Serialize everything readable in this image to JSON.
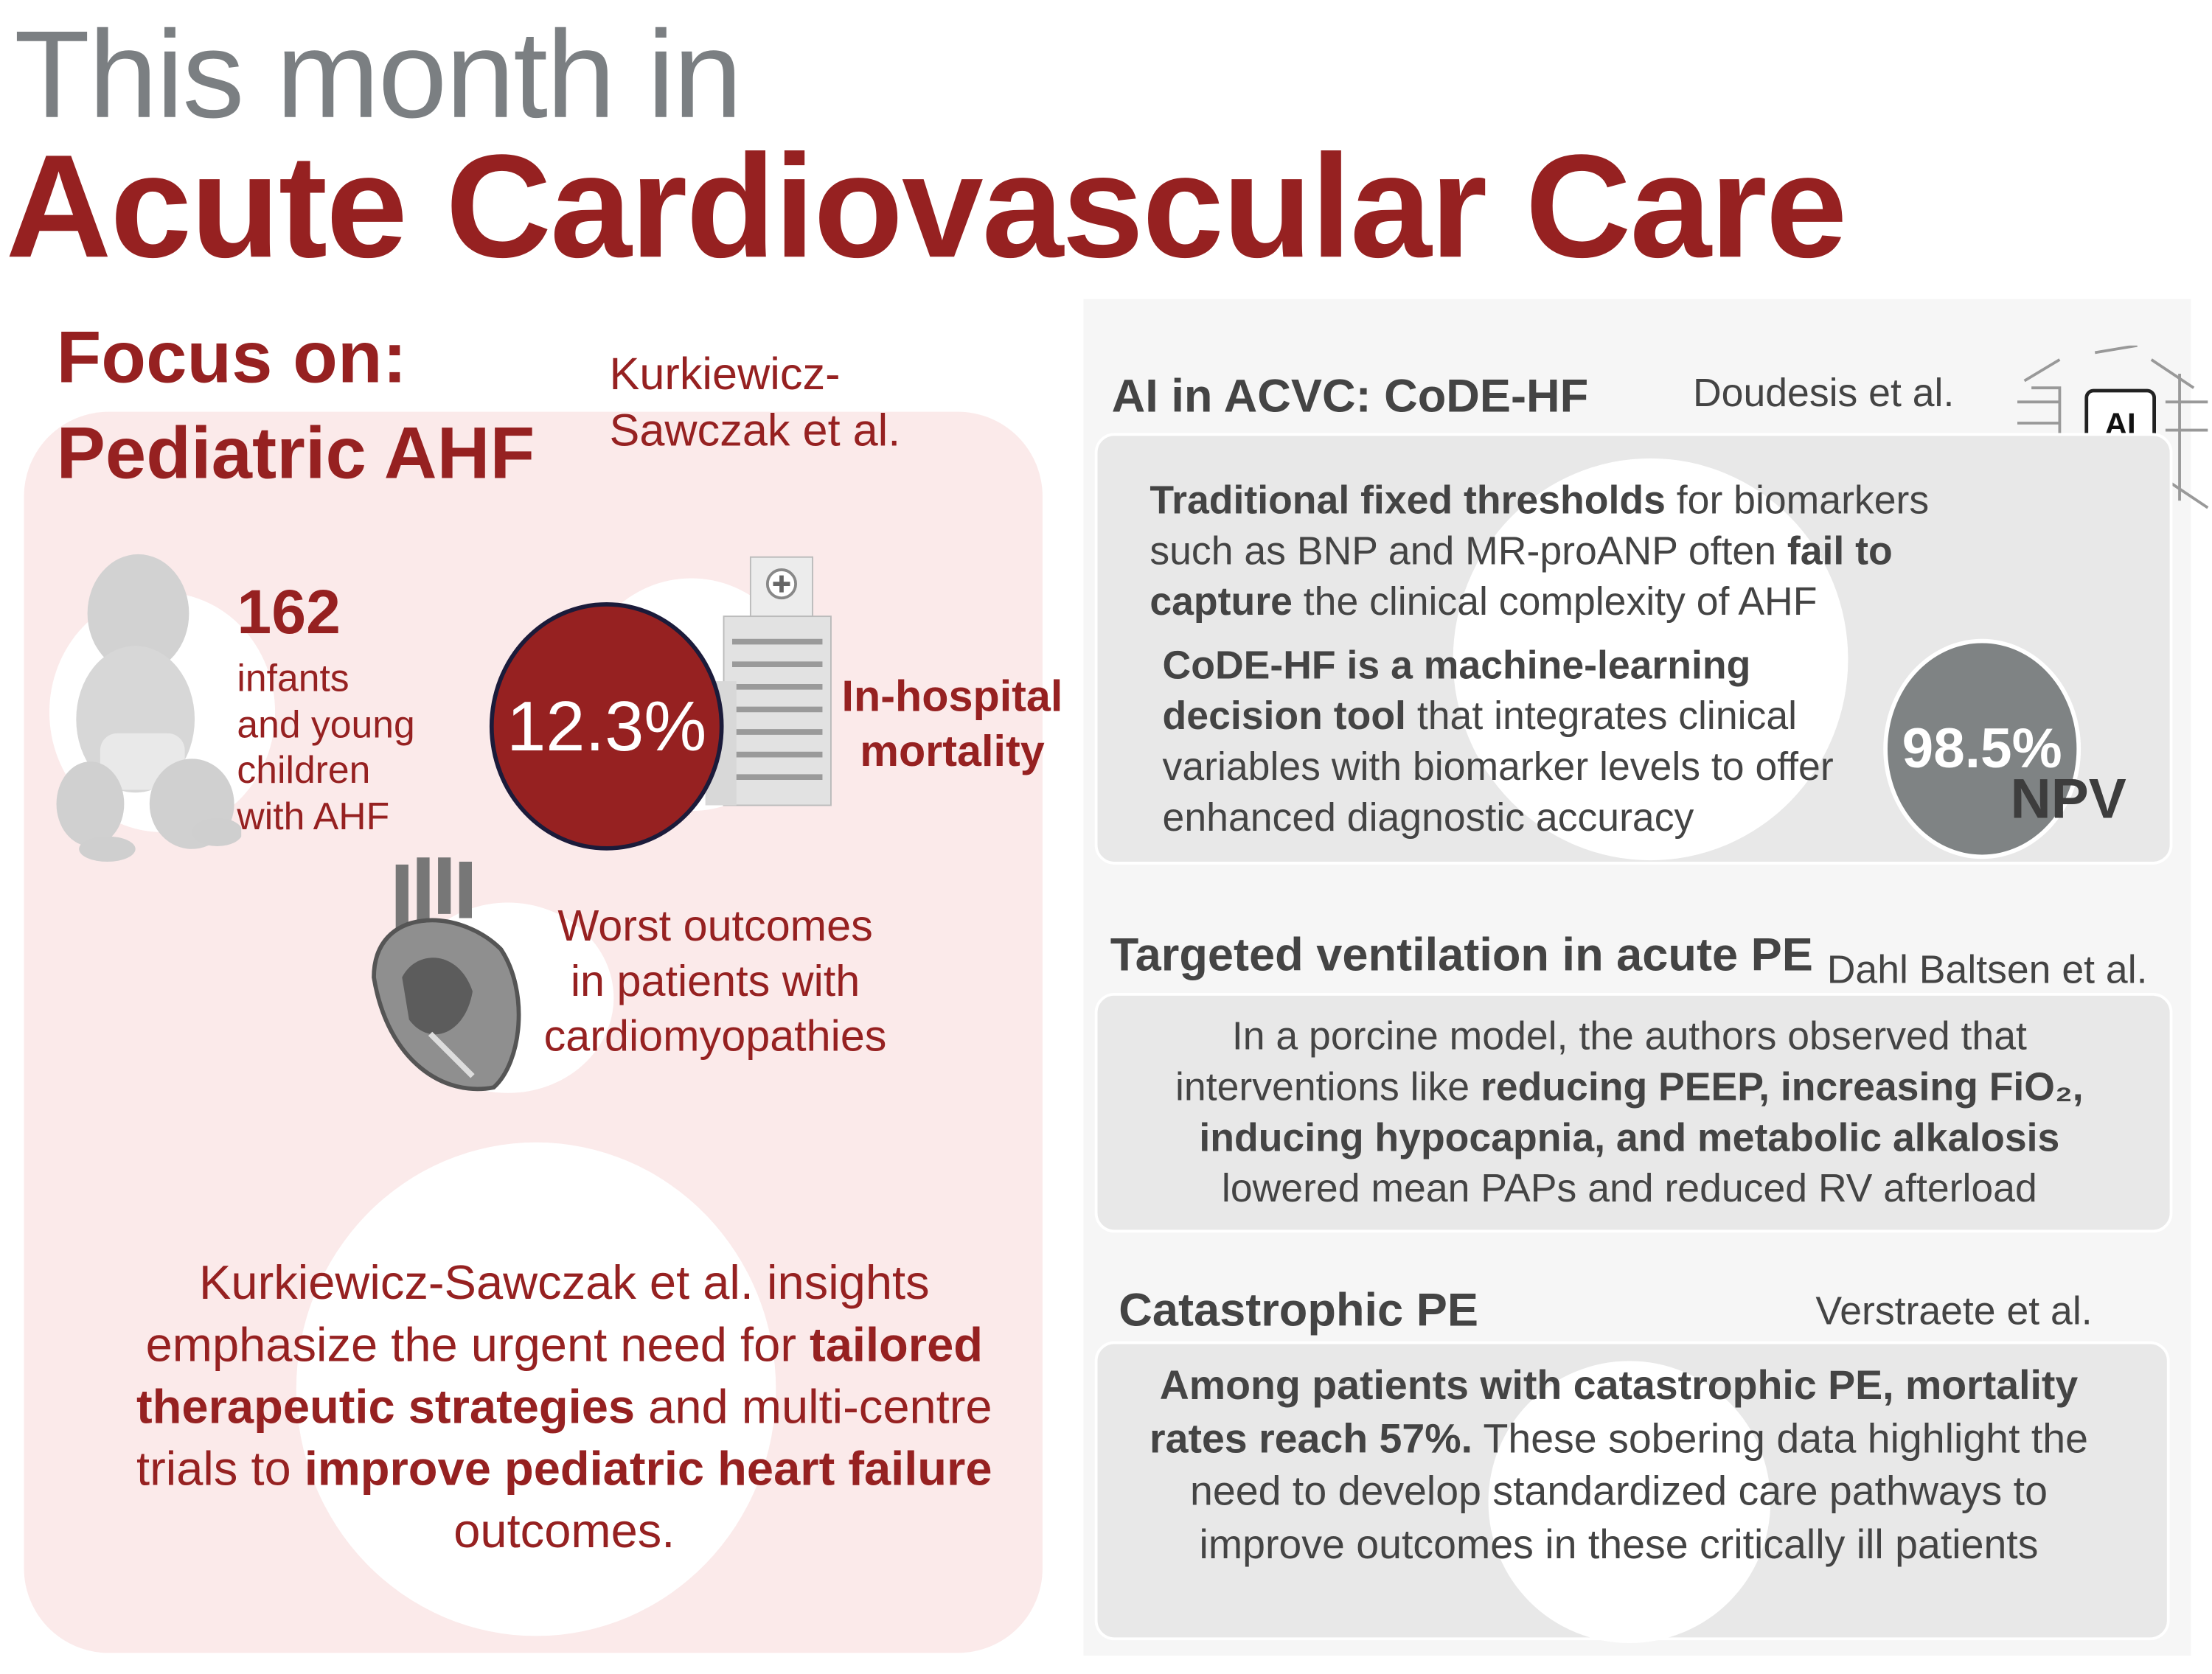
{
  "header": {
    "line1": "This month in",
    "line2": "Acute Cardiovascular Care"
  },
  "focus": {
    "title_line1": "Focus on:",
    "title_line2": "Pediatric AHF",
    "authors_line1": "Kurkiewicz-",
    "authors_line2": "Sawczak  et al.",
    "count": "162",
    "count_label": [
      "infants",
      "and young",
      "children",
      "with AHF"
    ],
    "mortality_value": "12.3%",
    "mortality_label": [
      "In-hospital",
      "mortality"
    ],
    "worst": [
      "Worst outcomes",
      "in patients with",
      "cardiomyopathies"
    ],
    "summary": {
      "p1": "Kurkiewicz-Sawczak  et al. insights emphasize the urgent need for ",
      "b1": "tailored therapeutic strategies",
      "p2": " and multi-centre trials to ",
      "b2": "improve pediatric heart failure",
      "p3": " outcomes."
    },
    "colors": {
      "accent": "#962121",
      "background": "#fbeaea"
    }
  },
  "ai": {
    "title": "AI in ACVC: CoDE-HF",
    "authors": "Doudesis et al.",
    "badge": "AI",
    "p1_b": "Traditional fixed thresholds",
    "p1_a": " for biomarkers such as BNP and MR-proANP often ",
    "p1_b2": "fail to capture",
    "p1_c": " the  clinical complexity of  AHF",
    "p2_b": "CoDE-HF is a machine-learning decision tool",
    "p2_a": " that integrates clinical variables with biomarker levels to offer enhanced diagnostic accuracy",
    "npv_value": "98.5%",
    "npv_label": "NPV"
  },
  "pe": {
    "title": "Targeted ventilation in acute PE",
    "authors": "Dahl Baltsen et al.",
    "a": "In a porcine model, the authors observed that interventions like  ",
    "b": "reducing PEEP, increasing FiO₂, inducing hypocapnia, and metabolic alkalosis",
    "c": " lowered mean PAPs and reduced RV afterload"
  },
  "cat": {
    "title": "Catastrophic PE",
    "authors": "Verstraete  et al.",
    "b": "Among patients with catastrophic PE, mortality rates reach 57%.",
    "a": " These sobering data highlight the need to develop standardized care pathways to improve outcomes in these critically ill patients"
  }
}
